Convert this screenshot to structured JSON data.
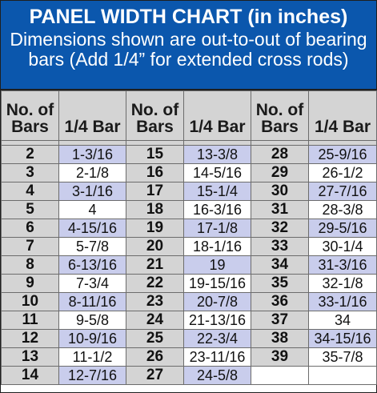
{
  "banner": {
    "title": "PANEL WIDTH CHART (in inches)",
    "subtitle": "Dimensions shown are out-to-out of bearing bars (Add 1/4” for extended cross rods)"
  },
  "headers": {
    "bars_line1": "No. of",
    "bars_line2": "Bars",
    "size": "1/4 Bar"
  },
  "colors": {
    "banner_blue": "#0b57ad",
    "header_gray": "#d4d4d4",
    "row_shade": "#c9cdec"
  },
  "columns": [
    {
      "rows": [
        {
          "bars": "2",
          "width": "1-3/16",
          "shaded": true
        },
        {
          "bars": "3",
          "width": "2-1/8",
          "shaded": false
        },
        {
          "bars": "4",
          "width": "3-1/16",
          "shaded": true
        },
        {
          "bars": "5",
          "width": "4",
          "shaded": false
        },
        {
          "bars": "6",
          "width": "4-15/16",
          "shaded": true
        },
        {
          "bars": "7",
          "width": "5-7/8",
          "shaded": false
        },
        {
          "bars": "8",
          "width": "6-13/16",
          "shaded": true
        },
        {
          "bars": "9",
          "width": "7-3/4",
          "shaded": false
        },
        {
          "bars": "10",
          "width": "8-11/16",
          "shaded": true
        },
        {
          "bars": "11",
          "width": "9-5/8",
          "shaded": false
        },
        {
          "bars": "12",
          "width": "10-9/16",
          "shaded": true
        },
        {
          "bars": "13",
          "width": "11-1/2",
          "shaded": false
        },
        {
          "bars": "14",
          "width": "12-7/16",
          "shaded": true
        }
      ]
    },
    {
      "rows": [
        {
          "bars": "15",
          "width": "13-3/8",
          "shaded": true
        },
        {
          "bars": "16",
          "width": "14-5/16",
          "shaded": false
        },
        {
          "bars": "17",
          "width": "15-1/4",
          "shaded": true
        },
        {
          "bars": "18",
          "width": "16-3/16",
          "shaded": false
        },
        {
          "bars": "19",
          "width": "17-1/8",
          "shaded": true
        },
        {
          "bars": "20",
          "width": "18-1/16",
          "shaded": false
        },
        {
          "bars": "21",
          "width": "19",
          "shaded": true
        },
        {
          "bars": "22",
          "width": "19-15/16",
          "shaded": false
        },
        {
          "bars": "23",
          "width": "20-7/8",
          "shaded": true
        },
        {
          "bars": "24",
          "width": "21-13/16",
          "shaded": false
        },
        {
          "bars": "25",
          "width": "22-3/4",
          "shaded": true
        },
        {
          "bars": "26",
          "width": "23-11/16",
          "shaded": false
        },
        {
          "bars": "27",
          "width": "24-5/8",
          "shaded": true
        }
      ]
    },
    {
      "rows": [
        {
          "bars": "28",
          "width": "25-9/16",
          "shaded": true
        },
        {
          "bars": "29",
          "width": "26-1/2",
          "shaded": false
        },
        {
          "bars": "30",
          "width": "27-7/16",
          "shaded": true
        },
        {
          "bars": "31",
          "width": "28-3/8",
          "shaded": false
        },
        {
          "bars": "32",
          "width": "29-5/16",
          "shaded": true
        },
        {
          "bars": "33",
          "width": "30-1/4",
          "shaded": false
        },
        {
          "bars": "34",
          "width": "31-3/16",
          "shaded": true
        },
        {
          "bars": "35",
          "width": "32-1/8",
          "shaded": false
        },
        {
          "bars": "36",
          "width": "33-1/16",
          "shaded": true
        },
        {
          "bars": "37",
          "width": "34",
          "shaded": false
        },
        {
          "bars": "38",
          "width": "34-15/16",
          "shaded": true
        },
        {
          "bars": "39",
          "width": "35-7/8",
          "shaded": false
        }
      ]
    }
  ]
}
